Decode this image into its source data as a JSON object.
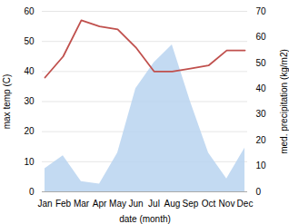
{
  "chart_data": {
    "type": "line",
    "xlabel": "date (month)",
    "ylabel": "max temp (C)",
    "y2label": "med. precipitation (kg/m2)",
    "categories": [
      "Jan",
      "Feb",
      "Mar",
      "Apr",
      "May",
      "Jun",
      "Jul",
      "Aug",
      "Sep",
      "Oct",
      "Nov",
      "Dec"
    ],
    "series": [
      {
        "type": "area",
        "axis": "y2",
        "color": "#b8d4f0",
        "values": [
          9,
          14,
          4,
          3,
          15,
          40,
          50,
          57,
          35,
          15,
          5,
          17
        ]
      },
      {
        "type": "line",
        "color": "#c0504d",
        "values": [
          38,
          45,
          57,
          55,
          54,
          48,
          40,
          40,
          41,
          42,
          47,
          47
        ]
      }
    ],
    "ylim": [
      0,
      60
    ],
    "yticks": [
      0,
      10,
      20,
      30,
      40,
      50,
      60
    ],
    "y2lim": [
      0,
      70
    ],
    "y2ticks": [
      0,
      10,
      20,
      30,
      40,
      50,
      60,
      70
    ],
    "grid": true
  }
}
